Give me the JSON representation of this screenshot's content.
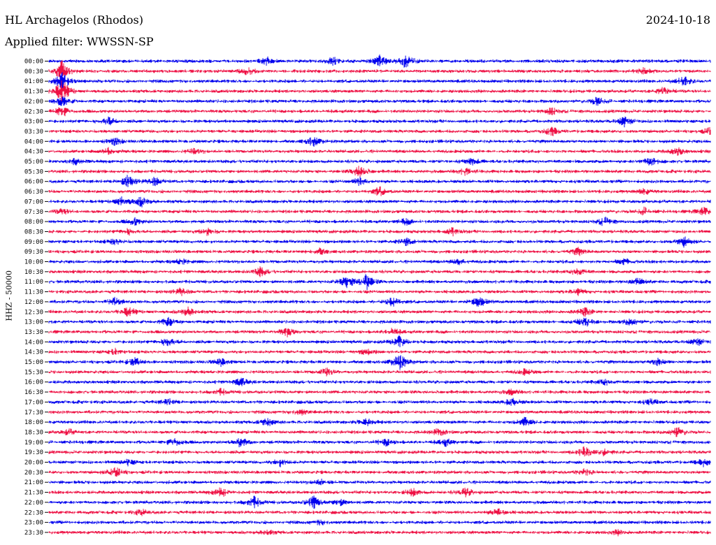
{
  "header": {
    "station": "HL Archagelos (Rhodos)",
    "date": "2024-10-18",
    "filter_label": "Applied filter: WWSSN-SP",
    "channel_label": "HHZ - 50000"
  },
  "chart_data": {
    "type": "line",
    "title": "HL Archagelos (Rhodos)",
    "subtitle": "Applied filter: WWSSN-SP",
    "ylabel": "HHZ - 50000",
    "xlabel": "",
    "grid": false,
    "legend": "none",
    "colors": [
      "#0000ee",
      "#ee1144"
    ],
    "y_tick_labels": [
      "00:00",
      "00:30",
      "01:00",
      "01:30",
      "02:00",
      "02:30",
      "03:00",
      "03:30",
      "04:00",
      "04:30",
      "05:00",
      "05:30",
      "06:00",
      "06:30",
      "07:00",
      "07:30",
      "08:00",
      "08:30",
      "09:00",
      "09:30",
      "10:00",
      "10:30",
      "11:00",
      "11:30",
      "12:00",
      "12:30",
      "13:00",
      "13:30",
      "14:00",
      "14:30",
      "15:00",
      "15:30",
      "16:00",
      "16:30",
      "17:00",
      "17:30",
      "18:00",
      "18:30",
      "19:00",
      "19:30",
      "20:00",
      "20:30",
      "21:00",
      "21:30",
      "22:00",
      "22:30",
      "23:00",
      "23:30"
    ],
    "rows": 48,
    "events": [
      {
        "row": 0,
        "x": 0.33,
        "amp": 0.5
      },
      {
        "row": 0,
        "x": 0.43,
        "amp": 0.6
      },
      {
        "row": 0,
        "x": 0.5,
        "amp": 0.8
      },
      {
        "row": 0,
        "x": 0.54,
        "amp": 1.0
      },
      {
        "row": 1,
        "x": 0.02,
        "amp": 1.5
      },
      {
        "row": 1,
        "x": 0.3,
        "amp": 0.5
      },
      {
        "row": 1,
        "x": 0.9,
        "amp": 0.4
      },
      {
        "row": 2,
        "x": 0.02,
        "amp": 1.2
      },
      {
        "row": 2,
        "x": 0.96,
        "amp": 0.7
      },
      {
        "row": 3,
        "x": 0.02,
        "amp": 1.8
      },
      {
        "row": 3,
        "x": 0.93,
        "amp": 0.6
      },
      {
        "row": 4,
        "x": 0.02,
        "amp": 0.8
      },
      {
        "row": 4,
        "x": 0.83,
        "amp": 0.6
      },
      {
        "row": 5,
        "x": 0.02,
        "amp": 0.8
      },
      {
        "row": 5,
        "x": 0.76,
        "amp": 0.5
      },
      {
        "row": 6,
        "x": 0.09,
        "amp": 0.6
      },
      {
        "row": 6,
        "x": 0.87,
        "amp": 0.7
      },
      {
        "row": 7,
        "x": 0.76,
        "amp": 0.6
      },
      {
        "row": 7,
        "x": 1.0,
        "amp": 0.5
      },
      {
        "row": 8,
        "x": 0.1,
        "amp": 0.5
      },
      {
        "row": 8,
        "x": 0.4,
        "amp": 0.7
      },
      {
        "row": 9,
        "x": 0.09,
        "amp": 0.5
      },
      {
        "row": 9,
        "x": 0.22,
        "amp": 0.4
      },
      {
        "row": 9,
        "x": 0.95,
        "amp": 0.6
      },
      {
        "row": 10,
        "x": 0.04,
        "amp": 0.4
      },
      {
        "row": 10,
        "x": 0.64,
        "amp": 0.5
      },
      {
        "row": 10,
        "x": 0.91,
        "amp": 0.7
      },
      {
        "row": 11,
        "x": 0.47,
        "amp": 0.9
      },
      {
        "row": 11,
        "x": 0.63,
        "amp": 0.5
      },
      {
        "row": 12,
        "x": 0.12,
        "amp": 0.9
      },
      {
        "row": 12,
        "x": 0.16,
        "amp": 0.6
      },
      {
        "row": 12,
        "x": 0.47,
        "amp": 0.5
      },
      {
        "row": 13,
        "x": 0.5,
        "amp": 0.6
      },
      {
        "row": 13,
        "x": 0.9,
        "amp": 0.4
      },
      {
        "row": 14,
        "x": 0.11,
        "amp": 0.6
      },
      {
        "row": 14,
        "x": 0.14,
        "amp": 0.7
      },
      {
        "row": 15,
        "x": 0.02,
        "amp": 0.4
      },
      {
        "row": 15,
        "x": 0.9,
        "amp": 0.5
      },
      {
        "row": 15,
        "x": 0.99,
        "amp": 0.6
      },
      {
        "row": 16,
        "x": 0.13,
        "amp": 0.5
      },
      {
        "row": 16,
        "x": 0.54,
        "amp": 0.4
      },
      {
        "row": 16,
        "x": 0.84,
        "amp": 0.6
      },
      {
        "row": 17,
        "x": 0.12,
        "amp": 0.4
      },
      {
        "row": 17,
        "x": 0.24,
        "amp": 0.5
      },
      {
        "row": 17,
        "x": 0.61,
        "amp": 0.5
      },
      {
        "row": 18,
        "x": 0.1,
        "amp": 0.4
      },
      {
        "row": 18,
        "x": 0.54,
        "amp": 0.5
      },
      {
        "row": 18,
        "x": 0.96,
        "amp": 0.7
      },
      {
        "row": 19,
        "x": 0.41,
        "amp": 0.4
      },
      {
        "row": 19,
        "x": 0.8,
        "amp": 0.5
      },
      {
        "row": 20,
        "x": 0.2,
        "amp": 0.4
      },
      {
        "row": 20,
        "x": 0.62,
        "amp": 0.4
      },
      {
        "row": 20,
        "x": 0.87,
        "amp": 0.4
      },
      {
        "row": 21,
        "x": 0.32,
        "amp": 0.6
      },
      {
        "row": 21,
        "x": 0.8,
        "amp": 0.5
      },
      {
        "row": 22,
        "x": 0.45,
        "amp": 0.9
      },
      {
        "row": 22,
        "x": 0.48,
        "amp": 1.1
      },
      {
        "row": 22,
        "x": 0.89,
        "amp": 0.5
      },
      {
        "row": 23,
        "x": 0.2,
        "amp": 0.5
      },
      {
        "row": 23,
        "x": 0.8,
        "amp": 0.4
      },
      {
        "row": 24,
        "x": 0.1,
        "amp": 0.6
      },
      {
        "row": 24,
        "x": 0.52,
        "amp": 0.7
      },
      {
        "row": 24,
        "x": 0.65,
        "amp": 0.8
      },
      {
        "row": 25,
        "x": 0.12,
        "amp": 0.7
      },
      {
        "row": 25,
        "x": 0.21,
        "amp": 0.6
      },
      {
        "row": 25,
        "x": 0.81,
        "amp": 0.6
      },
      {
        "row": 26,
        "x": 0.18,
        "amp": 0.6
      },
      {
        "row": 26,
        "x": 0.81,
        "amp": 0.7
      },
      {
        "row": 26,
        "x": 0.88,
        "amp": 0.5
      },
      {
        "row": 27,
        "x": 0.36,
        "amp": 0.6
      },
      {
        "row": 27,
        "x": 0.52,
        "amp": 0.5
      },
      {
        "row": 28,
        "x": 0.18,
        "amp": 0.7
      },
      {
        "row": 28,
        "x": 0.53,
        "amp": 0.8
      },
      {
        "row": 28,
        "x": 0.98,
        "amp": 0.5
      },
      {
        "row": 29,
        "x": 0.1,
        "amp": 0.4
      },
      {
        "row": 29,
        "x": 0.48,
        "amp": 0.4
      },
      {
        "row": 30,
        "x": 0.13,
        "amp": 0.6
      },
      {
        "row": 30,
        "x": 0.26,
        "amp": 0.5
      },
      {
        "row": 30,
        "x": 0.53,
        "amp": 1.2
      },
      {
        "row": 30,
        "x": 0.92,
        "amp": 0.5
      },
      {
        "row": 31,
        "x": 0.42,
        "amp": 0.5
      },
      {
        "row": 31,
        "x": 0.72,
        "amp": 0.4
      },
      {
        "row": 32,
        "x": 0.29,
        "amp": 0.6
      },
      {
        "row": 32,
        "x": 0.84,
        "amp": 0.4
      },
      {
        "row": 33,
        "x": 0.26,
        "amp": 0.4
      },
      {
        "row": 33,
        "x": 0.7,
        "amp": 0.4
      },
      {
        "row": 34,
        "x": 0.18,
        "amp": 0.4
      },
      {
        "row": 34,
        "x": 0.7,
        "amp": 0.5
      },
      {
        "row": 34,
        "x": 0.91,
        "amp": 0.4
      },
      {
        "row": 35,
        "x": 0.38,
        "amp": 0.4
      },
      {
        "row": 36,
        "x": 0.33,
        "amp": 0.6
      },
      {
        "row": 36,
        "x": 0.48,
        "amp": 0.5
      },
      {
        "row": 36,
        "x": 0.72,
        "amp": 0.6
      },
      {
        "row": 37,
        "x": 0.03,
        "amp": 0.4
      },
      {
        "row": 37,
        "x": 0.59,
        "amp": 0.5
      },
      {
        "row": 37,
        "x": 0.95,
        "amp": 0.7
      },
      {
        "row": 38,
        "x": 0.19,
        "amp": 0.6
      },
      {
        "row": 38,
        "x": 0.29,
        "amp": 0.7
      },
      {
        "row": 38,
        "x": 0.51,
        "amp": 0.5
      },
      {
        "row": 38,
        "x": 0.6,
        "amp": 0.5
      },
      {
        "row": 39,
        "x": 0.81,
        "amp": 0.8
      },
      {
        "row": 39,
        "x": 0.84,
        "amp": 0.4
      },
      {
        "row": 40,
        "x": 0.12,
        "amp": 0.4
      },
      {
        "row": 40,
        "x": 0.35,
        "amp": 0.5
      },
      {
        "row": 40,
        "x": 0.99,
        "amp": 0.5
      },
      {
        "row": 41,
        "x": 0.1,
        "amp": 0.8
      },
      {
        "row": 41,
        "x": 0.81,
        "amp": 0.5
      },
      {
        "row": 42,
        "x": 0.41,
        "amp": 0.4
      },
      {
        "row": 43,
        "x": 0.26,
        "amp": 0.7
      },
      {
        "row": 43,
        "x": 0.55,
        "amp": 0.5
      },
      {
        "row": 43,
        "x": 0.63,
        "amp": 0.6
      },
      {
        "row": 44,
        "x": 0.31,
        "amp": 0.8
      },
      {
        "row": 44,
        "x": 0.4,
        "amp": 0.9
      },
      {
        "row": 44,
        "x": 0.44,
        "amp": 0.5
      },
      {
        "row": 45,
        "x": 0.14,
        "amp": 0.4
      },
      {
        "row": 45,
        "x": 0.68,
        "amp": 0.6
      },
      {
        "row": 46,
        "x": 0.41,
        "amp": 0.3
      },
      {
        "row": 47,
        "x": 0.33,
        "amp": 0.3
      },
      {
        "row": 47,
        "x": 0.86,
        "amp": 0.3
      }
    ]
  }
}
